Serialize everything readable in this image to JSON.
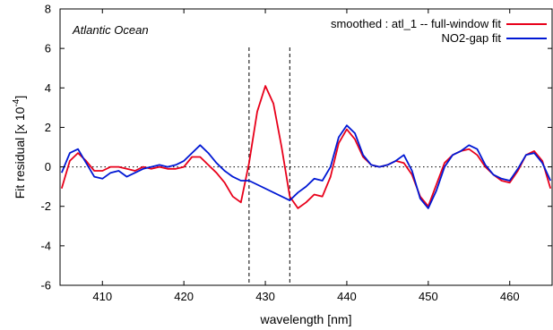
{
  "chart_data": {
    "type": "line",
    "annotation": "Atlantic Ocean",
    "xlabel": "wavelength  [nm]",
    "ylabel": "Fit residual  [x 10",
    "ylabel_exp": "-4",
    "ylabel_close": "]",
    "xlim": [
      404.8,
      465.2
    ],
    "ylim": [
      -6,
      8
    ],
    "xticks": [
      410,
      420,
      430,
      440,
      450,
      460
    ],
    "yticks": [
      -6,
      -4,
      -2,
      0,
      2,
      4,
      6,
      8
    ],
    "zero_line": true,
    "vlines": [
      428.0,
      433.0
    ],
    "legend": {
      "position": "top-right"
    },
    "series": [
      {
        "name": "smoothed : atl_1  --  full-window fit",
        "color": "#e8001a",
        "x": [
          405,
          406,
          407,
          408,
          409,
          410,
          411,
          412,
          413,
          414,
          415,
          416,
          417,
          418,
          419,
          420,
          421,
          422,
          423,
          424,
          425,
          426,
          427,
          428,
          429,
          430,
          431,
          432,
          433,
          434,
          435,
          436,
          437,
          438,
          439,
          440,
          441,
          442,
          443,
          444,
          445,
          446,
          447,
          448,
          449,
          450,
          451,
          452,
          453,
          454,
          455,
          456,
          457,
          458,
          459,
          460,
          461,
          462,
          463,
          464,
          465
        ],
        "y": [
          -1.1,
          0.3,
          0.7,
          0.3,
          -0.2,
          -0.2,
          0.0,
          0.0,
          -0.1,
          -0.2,
          0.0,
          -0.1,
          0.0,
          -0.1,
          -0.1,
          0.0,
          0.5,
          0.5,
          0.1,
          -0.3,
          -0.8,
          -1.5,
          -1.8,
          0.2,
          2.8,
          4.1,
          3.2,
          1.0,
          -1.5,
          -2.1,
          -1.8,
          -1.4,
          -1.5,
          -0.5,
          1.2,
          1.9,
          1.4,
          0.5,
          0.1,
          0.0,
          0.1,
          0.3,
          0.2,
          -0.4,
          -1.5,
          -2.0,
          -0.9,
          0.2,
          0.6,
          0.8,
          0.9,
          0.6,
          0.0,
          -0.4,
          -0.7,
          -0.8,
          -0.2,
          0.6,
          0.8,
          0.3,
          -1.1
        ]
      },
      {
        "name": "NO2-gap fit",
        "color": "#0018d4",
        "x": [
          405,
          406,
          407,
          408,
          409,
          410,
          411,
          412,
          413,
          414,
          415,
          416,
          417,
          418,
          419,
          420,
          421,
          422,
          423,
          424,
          425,
          426,
          427,
          428,
          433,
          434,
          435,
          436,
          437,
          438,
          439,
          440,
          441,
          442,
          443,
          444,
          445,
          446,
          447,
          448,
          449,
          450,
          451,
          452,
          453,
          454,
          455,
          456,
          457,
          458,
          459,
          460,
          461,
          462,
          463,
          464,
          465
        ],
        "y": [
          -0.3,
          0.7,
          0.9,
          0.2,
          -0.5,
          -0.6,
          -0.3,
          -0.2,
          -0.5,
          -0.3,
          -0.1,
          0.0,
          0.1,
          0.0,
          0.1,
          0.3,
          0.7,
          1.1,
          0.7,
          0.2,
          -0.2,
          -0.5,
          -0.7,
          -0.7,
          -1.7,
          -1.3,
          -1.0,
          -0.6,
          -0.7,
          0.0,
          1.5,
          2.1,
          1.7,
          0.6,
          0.1,
          0.0,
          0.1,
          0.3,
          0.6,
          -0.2,
          -1.6,
          -2.1,
          -1.2,
          0.0,
          0.6,
          0.8,
          1.1,
          0.9,
          0.1,
          -0.4,
          -0.6,
          -0.7,
          -0.1,
          0.6,
          0.7,
          0.2,
          -0.7
        ]
      }
    ]
  }
}
